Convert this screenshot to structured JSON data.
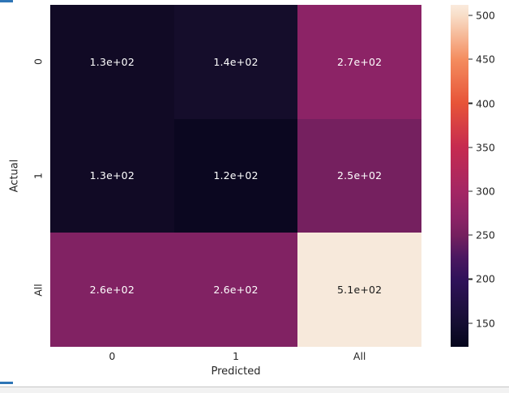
{
  "chart_data": {
    "type": "heatmap",
    "title": "",
    "xlabel": "Predicted",
    "ylabel": "Actual",
    "x_categories": [
      "0",
      "1",
      "All"
    ],
    "y_categories": [
      "0",
      "1",
      "All"
    ],
    "values": [
      [
        130,
        140,
        270
      ],
      [
        130,
        120,
        250
      ],
      [
        260,
        260,
        510
      ]
    ],
    "cell_labels": [
      [
        "1.3e+02",
        "1.4e+02",
        "2.7e+02"
      ],
      [
        "1.3e+02",
        "1.2e+02",
        "2.5e+02"
      ],
      [
        "2.6e+02",
        "2.6e+02",
        "5.1e+02"
      ]
    ],
    "cell_colors": [
      [
        "#110a25",
        "#150d2b",
        "#8c2366"
      ],
      [
        "#110a25",
        "#0b0720",
        "#75205f"
      ],
      [
        "#812263",
        "#812263",
        "#f7e9db"
      ]
    ],
    "cell_text_colors": [
      [
        "#ffffff",
        "#ffffff",
        "#ffffff"
      ],
      [
        "#ffffff",
        "#ffffff",
        "#ffffff"
      ],
      [
        "#ffffff",
        "#ffffff",
        "#1a1a1a"
      ]
    ],
    "grid": false,
    "legend_position": "right-colorbar",
    "colorbar": {
      "min": 123,
      "max": 512,
      "ticks": [
        500,
        450,
        400,
        350,
        300,
        250,
        200,
        150
      ],
      "gradient_stops": [
        {
          "pos": 0,
          "color": "#05051c"
        },
        {
          "pos": 6.9,
          "color": "#150e32"
        },
        {
          "pos": 19.8,
          "color": "#30125a"
        },
        {
          "pos": 26.2,
          "color": "#4b1760"
        },
        {
          "pos": 32.6,
          "color": "#75205f"
        },
        {
          "pos": 37.8,
          "color": "#8c2366"
        },
        {
          "pos": 45.5,
          "color": "#a42664"
        },
        {
          "pos": 58.4,
          "color": "#c62b50"
        },
        {
          "pos": 71.2,
          "color": "#e75438"
        },
        {
          "pos": 84.1,
          "color": "#f48d5f"
        },
        {
          "pos": 96.9,
          "color": "#f8dec8"
        },
        {
          "pos": 100,
          "color": "#faebdd"
        }
      ]
    }
  },
  "decorations": {
    "accent_color": "#2e75b6",
    "statusbar_color": "#f2f2f2"
  }
}
